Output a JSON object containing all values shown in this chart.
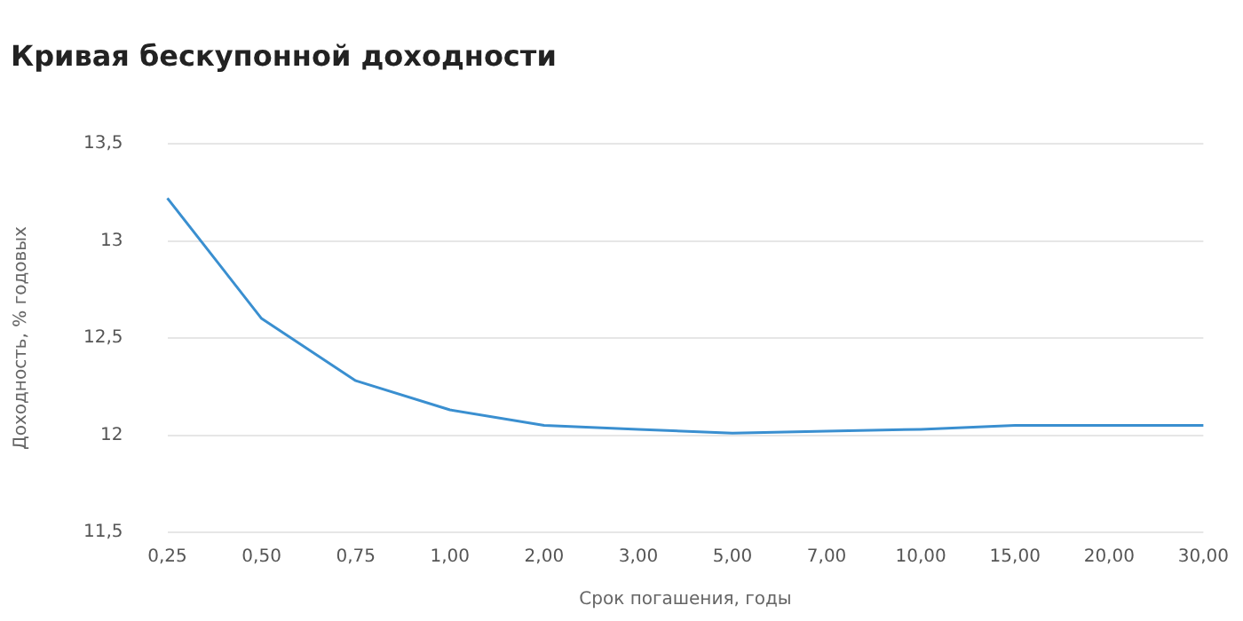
{
  "chart_data": {
    "type": "line",
    "title": "Кривая бескупонной доходности",
    "xlabel": "Срок погашения, годы",
    "ylabel": "Доходность, % годовых",
    "categories": [
      "0,25",
      "0,50",
      "0,75",
      "1,00",
      "2,00",
      "3,00",
      "5,00",
      "7,00",
      "10,00",
      "15,00",
      "20,00",
      "30,00"
    ],
    "series": [
      {
        "color": "#3a8fd0",
        "values": [
          13.22,
          12.6,
          12.28,
          12.13,
          12.05,
          12.03,
          12.01,
          12.02,
          12.03,
          12.05,
          12.05,
          12.05
        ]
      }
    ],
    "ylim": [
      11.5,
      13.5
    ],
    "yticks": [
      {
        "value": 11.5,
        "label": "11,5"
      },
      {
        "value": 12,
        "label": "12"
      },
      {
        "value": 12.5,
        "label": "12,5"
      },
      {
        "value": 13,
        "label": "13"
      },
      {
        "value": 13.5,
        "label": "13,5"
      }
    ],
    "grid": "y",
    "legend": false,
    "marker": "none",
    "line_style": "solid"
  }
}
